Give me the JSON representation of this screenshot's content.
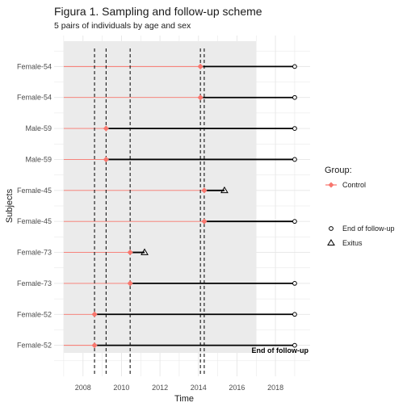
{
  "chart_data": {
    "type": "line",
    "title": "Figura 1. Sampling and follow-up scheme",
    "subtitle": "5 pairs of individuals by age and sex",
    "xlabel": "Time",
    "ylabel": "Subjects",
    "xlim": [
      2006.5,
      2019.8
    ],
    "x_ticks": [
      2008,
      2010,
      2012,
      2014,
      2016,
      2018
    ],
    "x_tick_labels": [
      "2008",
      "2010",
      "2012",
      "2014",
      "2016",
      "2018"
    ],
    "grid": true,
    "shaded_period": [
      2007,
      2017
    ],
    "end_of_followup": 2019,
    "subjects": [
      {
        "label": "Female-54",
        "sampling_date": 2014.1,
        "end": 2019.0,
        "end_event": "End of follow-up"
      },
      {
        "label": "Female-54",
        "sampling_date": 2014.1,
        "end": 2019.0,
        "end_event": "End of follow-up"
      },
      {
        "label": "Male-59",
        "sampling_date": 2009.2,
        "end": 2019.0,
        "end_event": "End of follow-up"
      },
      {
        "label": "Male-59",
        "sampling_date": 2009.2,
        "end": 2019.0,
        "end_event": "End of follow-up"
      },
      {
        "label": "Female-45",
        "sampling_date": 2014.3,
        "end": 2015.35,
        "end_event": "Exitus"
      },
      {
        "label": "Female-45",
        "sampling_date": 2014.3,
        "end": 2019.0,
        "end_event": "End of follow-up"
      },
      {
        "label": "Female-73",
        "sampling_date": 2010.45,
        "end": 2011.2,
        "end_event": "Exitus"
      },
      {
        "label": "Female-73",
        "sampling_date": 2010.45,
        "end": 2019.0,
        "end_event": "End of follow-up"
      },
      {
        "label": "Female-52",
        "sampling_date": 2008.6,
        "end": 2019.0,
        "end_event": "End of follow-up"
      },
      {
        "label": "Female-52",
        "sampling_date": 2008.6,
        "end": 2019.0,
        "end_event": "End of follow-up"
      }
    ],
    "vertical_reference_lines": [
      2008.6,
      2009.2,
      2010.45,
      2014.1,
      2014.3
    ],
    "legend": {
      "placement": "right",
      "group_title": "Group:",
      "group_items": [
        {
          "label": "Control",
          "color": "#f8766d"
        }
      ],
      "shape_items": [
        {
          "label": "End of follow-up",
          "shape": "circle"
        },
        {
          "label": "Exitus",
          "shape": "triangle"
        }
      ]
    },
    "annotation": "End of follow-up",
    "colors": {
      "control": "#f8766d",
      "followup": "#000000",
      "shade": "#ebebeb",
      "grid": "#e6e6e6"
    }
  }
}
